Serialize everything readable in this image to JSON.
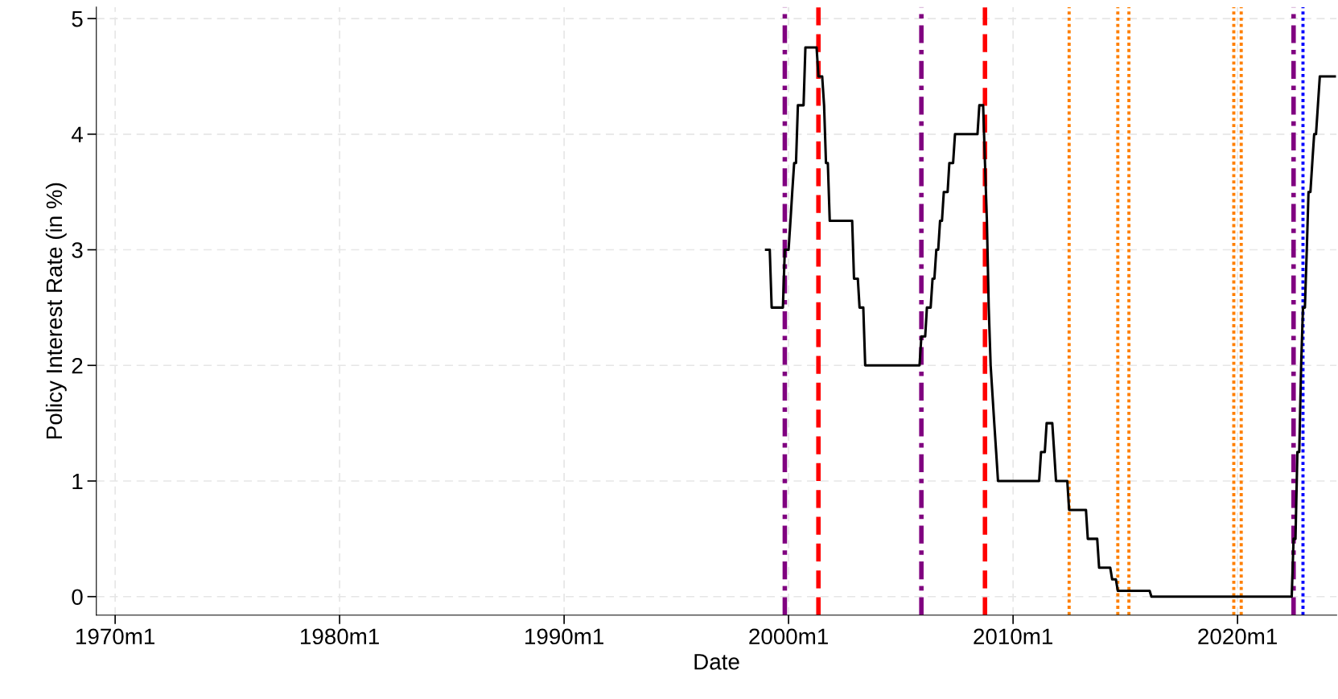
{
  "chart_data": {
    "type": "line",
    "xlabel": "Date",
    "ylabel": "Policy Interest Rate (in %)",
    "x": [
      "1999-01",
      "1999-03",
      "1999-04",
      "1999-10",
      "1999-11",
      "2000-01",
      "2000-02",
      "2000-03",
      "2000-04",
      "2000-05",
      "2000-06",
      "2000-09",
      "2000-10",
      "2001-04",
      "2001-05",
      "2001-07",
      "2001-08",
      "2001-09",
      "2001-10",
      "2001-11",
      "2002-11",
      "2002-12",
      "2003-02",
      "2003-03",
      "2003-05",
      "2003-06",
      "2005-11",
      "2005-12",
      "2006-02",
      "2006-03",
      "2006-05",
      "2006-06",
      "2006-07",
      "2006-08",
      "2006-09",
      "2006-10",
      "2006-11",
      "2006-12",
      "2007-02",
      "2007-03",
      "2007-05",
      "2007-06",
      "2008-06",
      "2008-07",
      "2008-09",
      "2008-10",
      "2008-11",
      "2008-12",
      "2009-01",
      "2009-03",
      "2009-04",
      "2009-05",
      "2011-03",
      "2011-04",
      "2011-06",
      "2011-07",
      "2011-10",
      "2011-11",
      "2011-12",
      "2012-06",
      "2012-07",
      "2013-04",
      "2013-05",
      "2013-10",
      "2013-11",
      "2014-05",
      "2014-06",
      "2014-08",
      "2014-09",
      "2016-02",
      "2016-03",
      "2022-06",
      "2022-07",
      "2022-08",
      "2022-09",
      "2022-10",
      "2022-11",
      "2022-12",
      "2023-01",
      "2023-02",
      "2023-03",
      "2023-04",
      "2023-05",
      "2023-06",
      "2023-07",
      "2023-08",
      "2023-09",
      "2024-05"
    ],
    "series": [
      {
        "color": "#000000",
        "values": [
          3.0,
          3.0,
          2.5,
          2.5,
          3.0,
          3.0,
          3.25,
          3.5,
          3.75,
          3.75,
          4.25,
          4.25,
          4.75,
          4.75,
          4.5,
          4.5,
          4.25,
          3.75,
          3.75,
          3.25,
          3.25,
          2.75,
          2.75,
          2.5,
          2.5,
          2.0,
          2.0,
          2.25,
          2.25,
          2.5,
          2.5,
          2.75,
          2.75,
          3.0,
          3.0,
          3.25,
          3.25,
          3.5,
          3.5,
          3.75,
          3.75,
          4.0,
          4.0,
          4.25,
          4.25,
          3.75,
          3.25,
          2.5,
          2.0,
          1.5,
          1.25,
          1.0,
          1.0,
          1.25,
          1.25,
          1.5,
          1.5,
          1.25,
          1.0,
          1.0,
          0.75,
          0.75,
          0.5,
          0.5,
          0.25,
          0.25,
          0.15,
          0.15,
          0.05,
          0.05,
          0.0,
          0.0,
          0.5,
          0.5,
          1.25,
          1.25,
          2.0,
          2.5,
          2.5,
          3.0,
          3.5,
          3.5,
          3.75,
          4.0,
          4.0,
          4.25,
          4.5,
          4.5
        ]
      }
    ],
    "xlim": [
      "1969-03",
      "2024-06"
    ],
    "xticks": [
      {
        "value": "1970-01",
        "label": "1970m1"
      },
      {
        "value": "1980-01",
        "label": "1980m1"
      },
      {
        "value": "1990-01",
        "label": "1990m1"
      },
      {
        "value": "2000-01",
        "label": "2000m1"
      },
      {
        "value": "2010-01",
        "label": "2010m1"
      },
      {
        "value": "2020-01",
        "label": "2020m1"
      }
    ],
    "ylim": [
      -0.16,
      5.1
    ],
    "yticks": [
      0,
      1,
      2,
      3,
      4,
      5
    ],
    "grid": true,
    "line_style": "solid",
    "marker": "none",
    "ref_lines": [
      {
        "axis": "x",
        "value": "1999-11",
        "color": "#800080",
        "line_style": "dashdot"
      },
      {
        "axis": "x",
        "value": "2001-05",
        "color": "#ff0000",
        "line_style": "dashed"
      },
      {
        "axis": "x",
        "value": "2005-12",
        "color": "#800080",
        "line_style": "dashdot"
      },
      {
        "axis": "x",
        "value": "2008-10",
        "color": "#ff0000",
        "line_style": "dashed"
      },
      {
        "axis": "x",
        "value": "2012-07",
        "color": "#ff7f00",
        "line_style": "dotted"
      },
      {
        "axis": "x",
        "value": "2014-09",
        "color": "#ff7f00",
        "line_style": "dotted"
      },
      {
        "axis": "x",
        "value": "2015-03",
        "color": "#ff7f00",
        "line_style": "dotted"
      },
      {
        "axis": "x",
        "value": "2019-11",
        "color": "#ff7f00",
        "line_style": "dotted"
      },
      {
        "axis": "x",
        "value": "2020-03",
        "color": "#ff7f00",
        "line_style": "dotted"
      },
      {
        "axis": "x",
        "value": "2022-07",
        "color": "#800080",
        "line_style": "dashdot"
      },
      {
        "axis": "x",
        "value": "2022-12",
        "color": "#0000ff",
        "line_style": "dotted"
      }
    ]
  }
}
